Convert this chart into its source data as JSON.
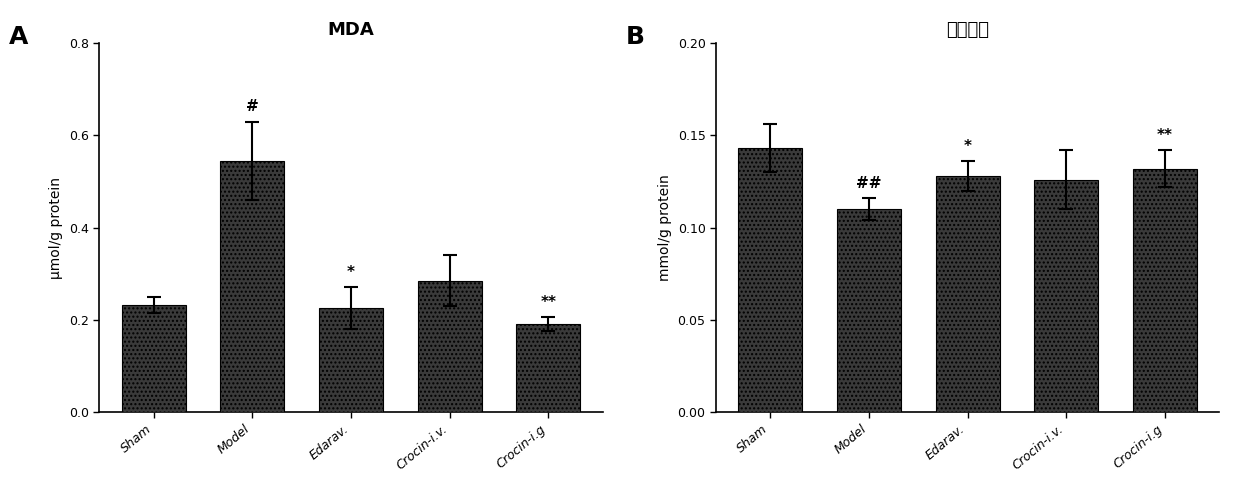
{
  "panel_A": {
    "title": "MDA",
    "ylabel": "μmol/g protein",
    "categories": [
      "Sham",
      "Model",
      "Edarav.",
      "Crocin-i.v.",
      "Crocin-i.g"
    ],
    "values": [
      0.232,
      0.545,
      0.225,
      0.285,
      0.19
    ],
    "errors": [
      0.018,
      0.085,
      0.045,
      0.055,
      0.015
    ],
    "annotations": [
      "",
      "#",
      "*",
      "",
      "**"
    ],
    "ylim": [
      0,
      0.8
    ],
    "yticks": [
      0.0,
      0.2,
      0.4,
      0.6,
      0.8
    ],
    "label": "A"
  },
  "panel_B": {
    "title": "总抗氧化",
    "ylabel": "mmol/g protein",
    "categories": [
      "Sham",
      "Model",
      "Edarav.",
      "Crocin-i.v.",
      "Crocin-i.g"
    ],
    "values": [
      0.143,
      0.11,
      0.128,
      0.126,
      0.132
    ],
    "errors": [
      0.013,
      0.006,
      0.008,
      0.016,
      0.01
    ],
    "annotations": [
      "",
      "##",
      "*",
      "",
      "**"
    ],
    "ylim": [
      0,
      0.2
    ],
    "yticks": [
      0.0,
      0.05,
      0.1,
      0.15,
      0.2
    ],
    "label": "B"
  },
  "bar_color": "#3a3a3a",
  "bar_hatch": "....",
  "bar_edgecolor": "#000000",
  "figure_bg": "#ffffff",
  "annotation_fontsize": 11,
  "label_fontsize": 18,
  "title_fontsize": 13,
  "tick_fontsize": 9,
  "ylabel_fontsize": 10,
  "xtick_rotation": 40
}
